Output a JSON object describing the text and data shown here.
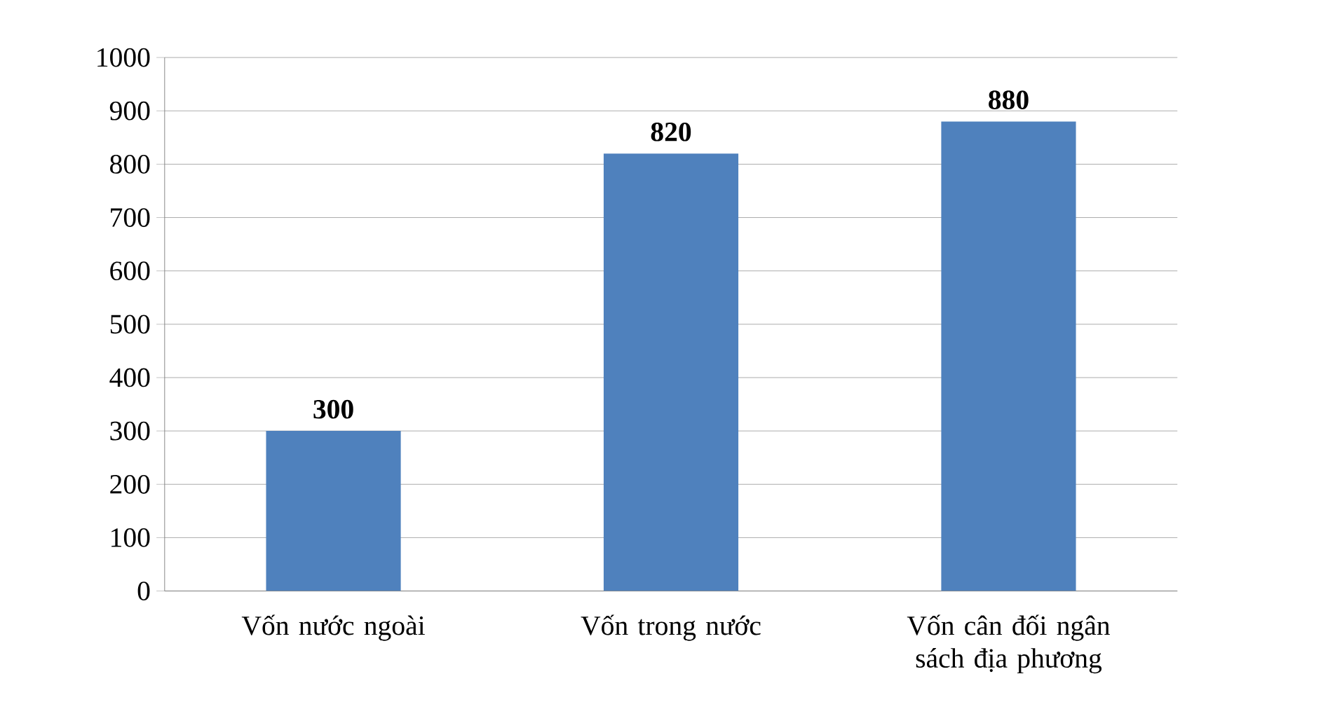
{
  "chart_data": {
    "type": "bar",
    "categories": [
      "Vốn nước ngoài",
      "Vốn trong nước",
      "Vốn cân đối ngân sách địa phương"
    ],
    "values": [
      300,
      820,
      880
    ],
    "color": "#4f81bd",
    "ylim": [
      0,
      1000
    ],
    "yticks": [
      0,
      100,
      200,
      300,
      400,
      500,
      600,
      700,
      800,
      900,
      1000
    ],
    "grid": "y",
    "data_labels": true
  }
}
